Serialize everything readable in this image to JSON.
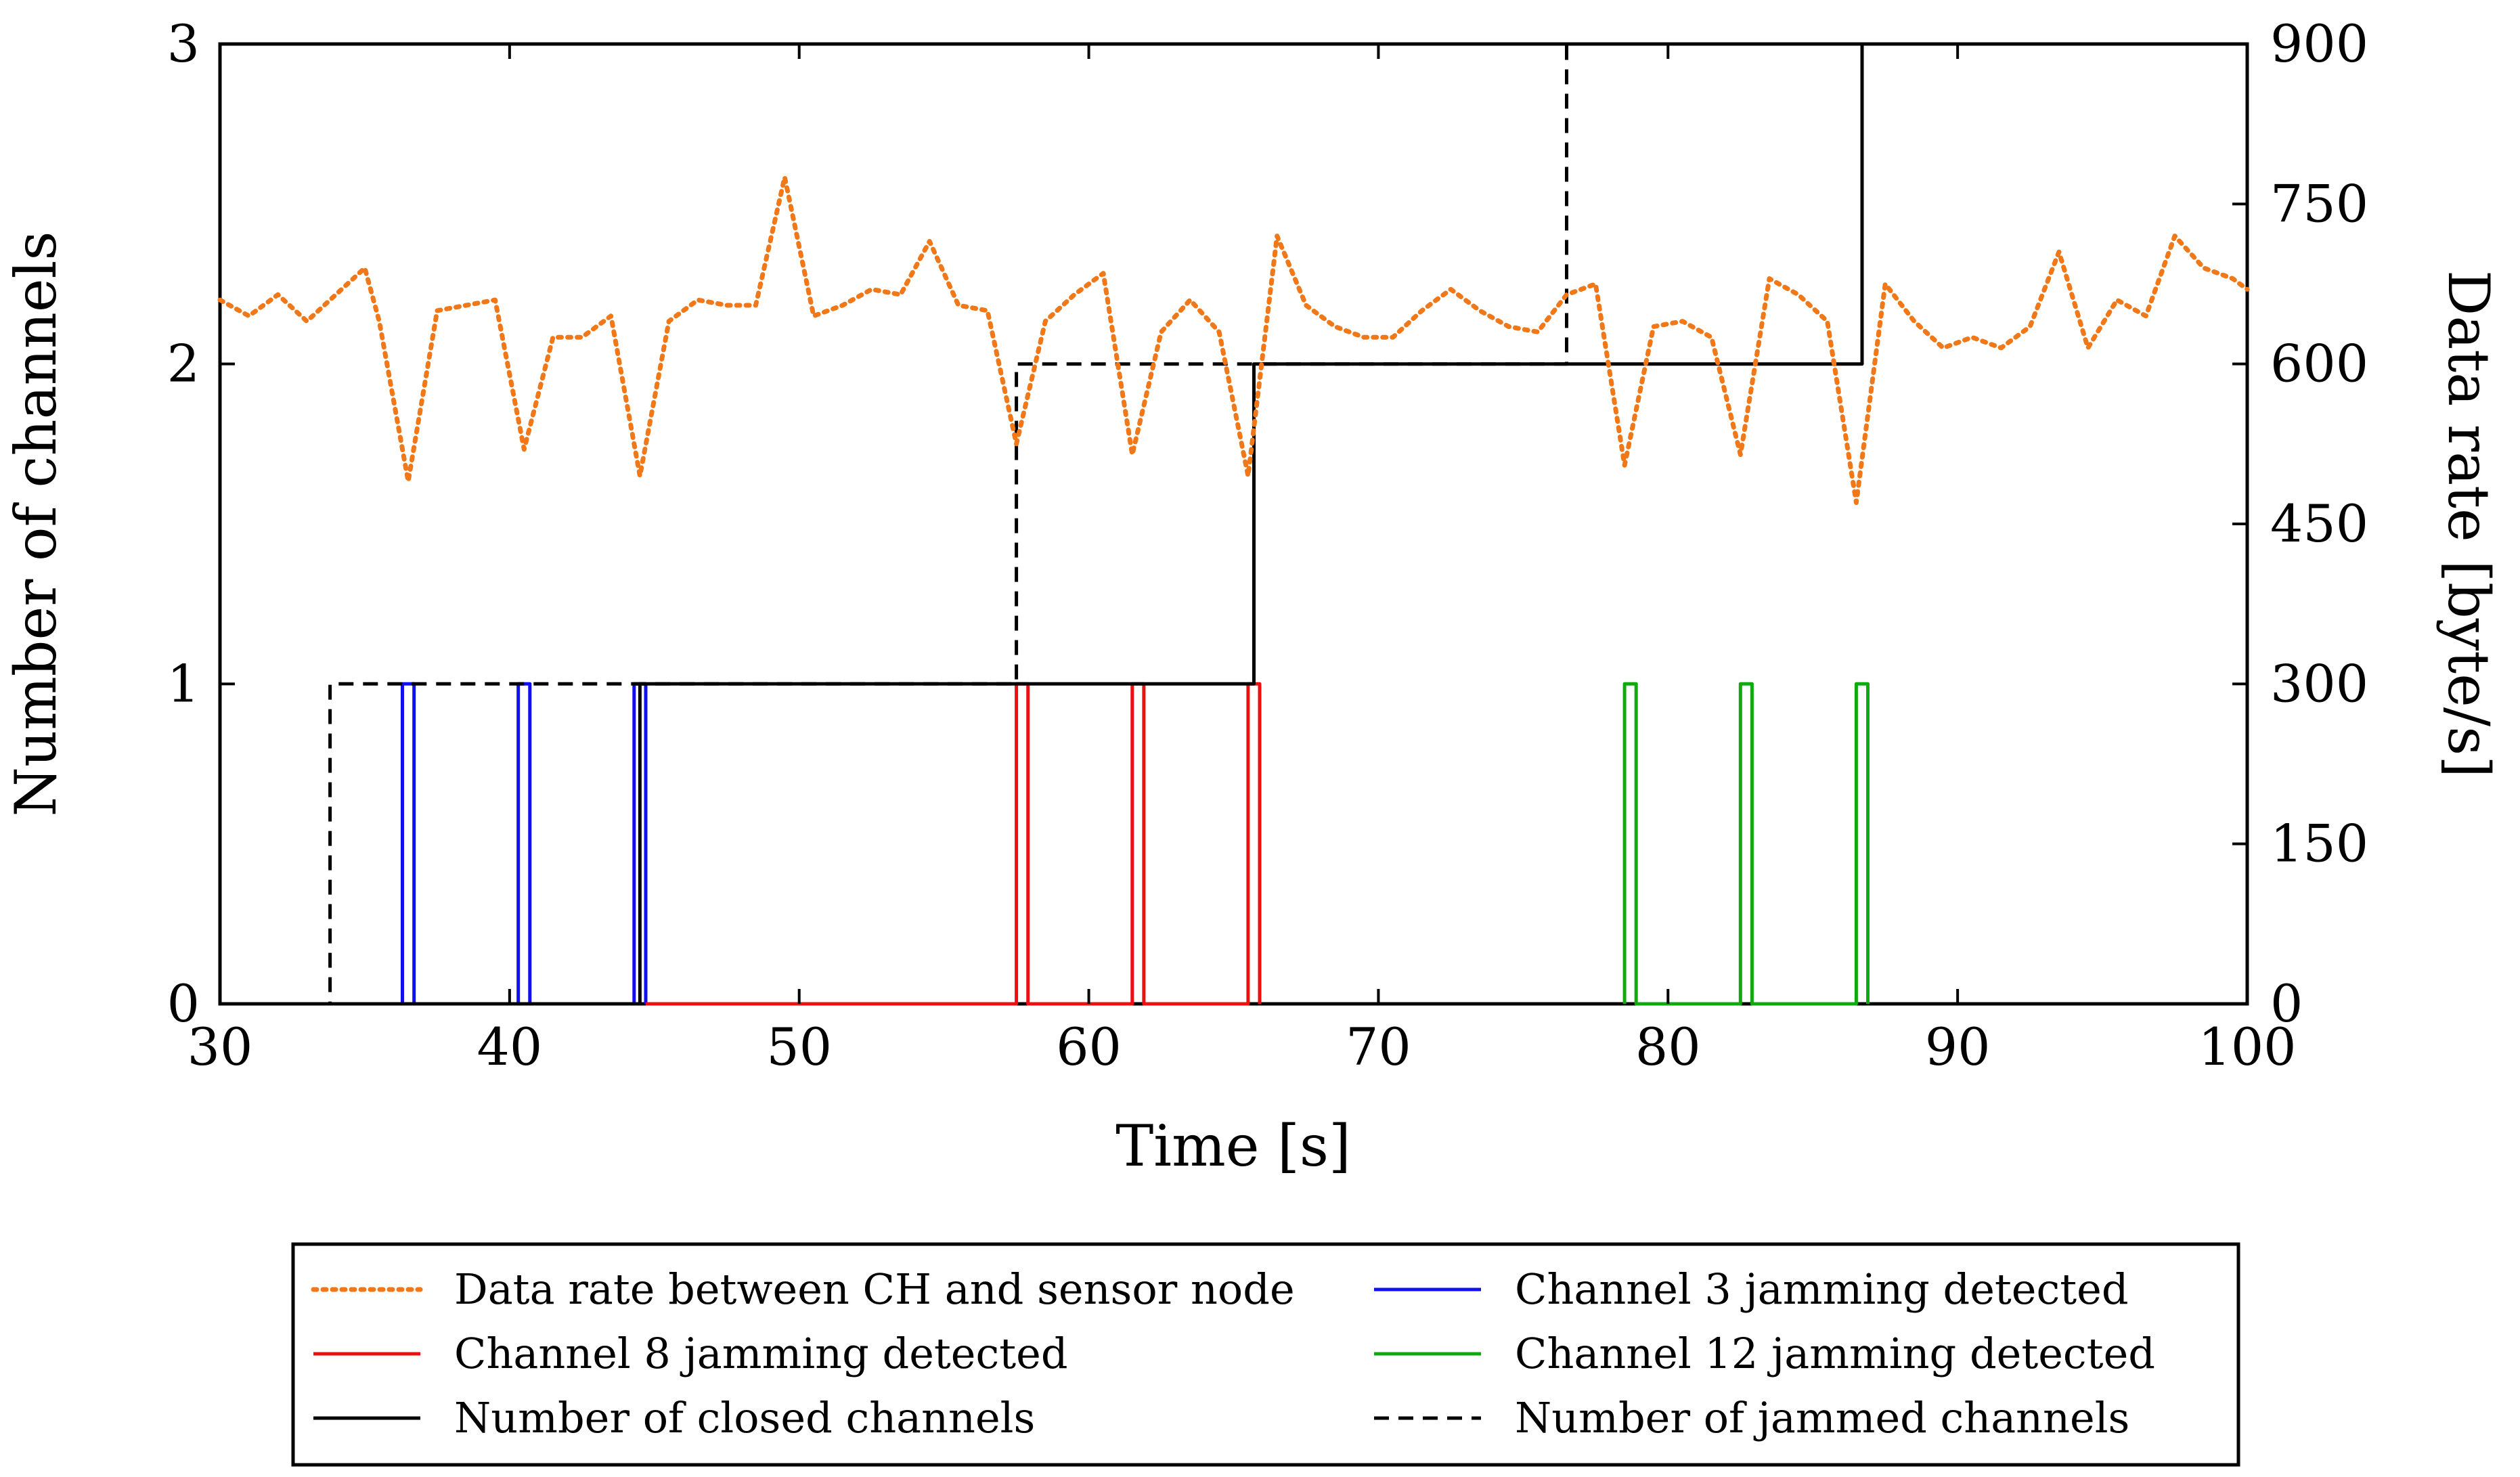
{
  "chart_data": {
    "type": "line",
    "x": {
      "label": "Time [s]",
      "range": [
        30,
        100
      ],
      "ticks": [
        30,
        40,
        50,
        60,
        70,
        80,
        90,
        100
      ],
      "tick_labels": [
        "30",
        "40",
        "50",
        "60",
        "70",
        "80",
        "90",
        "100"
      ]
    },
    "y_left": {
      "label": "Number of channels",
      "range": [
        0,
        3
      ],
      "ticks": [
        0,
        1,
        2,
        3
      ],
      "tick_labels": [
        "0",
        "1",
        "2",
        "3"
      ]
    },
    "y_right": {
      "label": "Data rate [byte/s]",
      "range": [
        0,
        900
      ],
      "ticks": [
        0,
        150,
        300,
        450,
        600,
        750,
        900
      ],
      "tick_labels": [
        "0",
        "150",
        "300",
        "450",
        "600",
        "750",
        "900"
      ]
    },
    "series": [
      {
        "key": "data_rate",
        "name": "Data rate between CH and sensor node",
        "axis": "right",
        "color": "#f07818",
        "dash": "dotted",
        "x": [
          30,
          31,
          32,
          33,
          34,
          35,
          35.5,
          36.5,
          37.5,
          38.5,
          39.5,
          40.5,
          41.5,
          42.5,
          43.5,
          44.5,
          45.5,
          46.5,
          47.5,
          48.5,
          49.5,
          50.5,
          51.5,
          52.5,
          53.5,
          54.5,
          55.5,
          56.5,
          57.5,
          58.5,
          59.5,
          60.5,
          61.5,
          62.5,
          63.5,
          64.5,
          65.5,
          66.5,
          67.5,
          68.5,
          69.5,
          70.5,
          71.5,
          72.5,
          73.5,
          74.5,
          75.5,
          76.5,
          77.5,
          78.5,
          79.5,
          80.5,
          81.5,
          82.5,
          83.5,
          84.5,
          85.5,
          86.5,
          87.5,
          88.5,
          89.5,
          90.5,
          91.5,
          92.5,
          93.5,
          94.5,
          95.5,
          96.5,
          97.5,
          98.5,
          99.5,
          100
        ],
        "values": [
          660,
          645,
          665,
          640,
          665,
          690,
          640,
          490,
          650,
          655,
          660,
          520,
          625,
          625,
          645,
          495,
          640,
          660,
          655,
          655,
          775,
          645,
          655,
          670,
          665,
          715,
          655,
          650,
          525,
          640,
          665,
          685,
          515,
          630,
          660,
          630,
          495,
          720,
          655,
          635,
          625,
          625,
          650,
          670,
          650,
          635,
          630,
          665,
          675,
          505,
          635,
          640,
          625,
          515,
          680,
          665,
          640,
          470,
          675,
          640,
          615,
          625,
          615,
          635,
          705,
          615,
          660,
          645,
          720,
          690,
          680,
          670
        ]
      },
      {
        "key": "ch3",
        "name": "Channel 3 jamming detected",
        "axis": "left",
        "color": "#1010ee",
        "dash": "solid",
        "x": [
          30,
          36.3,
          36.3,
          36.7,
          36.7,
          40.3,
          40.3,
          40.7,
          40.7,
          44.3,
          44.3,
          44.7,
          44.7
        ],
        "values": [
          0,
          0,
          1,
          1,
          0,
          0,
          1,
          1,
          0,
          0,
          1,
          1,
          0
        ]
      },
      {
        "key": "ch8",
        "name": "Channel 8 jamming detected",
        "axis": "left",
        "color": "#ee1010",
        "dash": "solid",
        "x": [
          44.7,
          57.5,
          57.5,
          57.9,
          57.9,
          61.5,
          61.5,
          61.9,
          61.9,
          65.5,
          65.5,
          65.9,
          65.9
        ],
        "values": [
          0,
          0,
          1,
          1,
          0,
          0,
          1,
          1,
          0,
          0,
          1,
          1,
          0
        ]
      },
      {
        "key": "ch12",
        "name": "Channel 12 jamming detected",
        "axis": "left",
        "color": "#10aa10",
        "dash": "solid",
        "x": [
          78.5,
          78.5,
          78.9,
          78.9,
          82.5,
          82.5,
          82.9,
          82.9,
          86.5,
          86.5,
          86.9,
          86.9
        ],
        "values": [
          0,
          1,
          1,
          0,
          0,
          1,
          1,
          0,
          0,
          1,
          1,
          0
        ]
      },
      {
        "key": "closed",
        "name": "Number of closed channels",
        "axis": "left",
        "color": "#000000",
        "dash": "solid",
        "x": [
          30,
          44.5,
          44.5,
          65.7,
          65.7,
          86.7,
          86.7,
          100
        ],
        "values": [
          0,
          0,
          1,
          1,
          2,
          2,
          3,
          3
        ]
      },
      {
        "key": "jammed",
        "name": "Number of jammed channels",
        "axis": "left",
        "color": "#000000",
        "dash": "dashed",
        "x": [
          30,
          33.8,
          33.8,
          57.5,
          57.5,
          76.5,
          76.5
        ],
        "values": [
          0,
          0,
          1,
          1,
          2,
          2,
          3
        ]
      }
    ],
    "legend_order": [
      "data_rate",
      "ch3",
      "ch8",
      "ch12",
      "closed",
      "jammed"
    ],
    "legend_position": "bottom",
    "grid": false
  }
}
